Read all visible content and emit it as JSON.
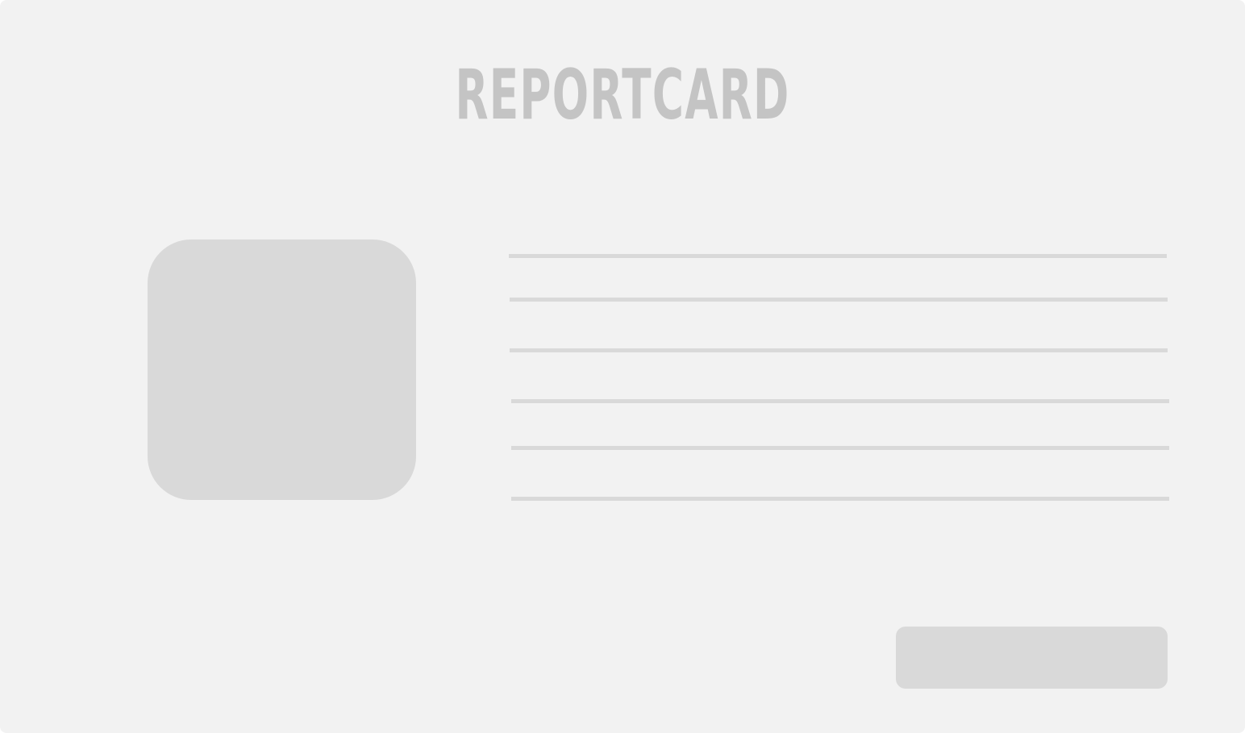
{
  "card": {
    "title": "REPORTCARD"
  },
  "colors": {
    "background": "#f2f2f2",
    "placeholder": "#d9d9d9",
    "title": "#c4c4c4"
  }
}
